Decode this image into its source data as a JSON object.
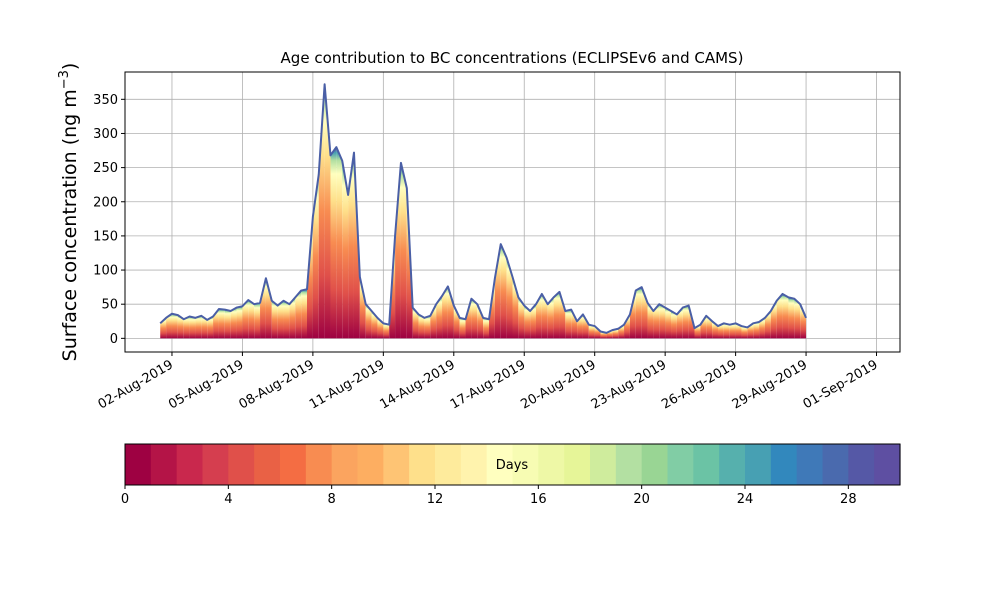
{
  "chart_data": {
    "type": "area",
    "title": "Age contribution to BC concentrations (ECLIPSEv6 and CAMS)",
    "ylabel": "Surface concentration (ng m",
    "ylabel_superscript": "−3",
    "ylabel_close": ")",
    "xlabel": "",
    "ylim": [
      -20,
      390
    ],
    "yticks": [
      0,
      50,
      100,
      150,
      200,
      250,
      300,
      350
    ],
    "xlim": [
      "2019-07-31T00:00",
      "2019-09-02T00:00"
    ],
    "xticks": [
      "02-Aug-2019",
      "05-Aug-2019",
      "08-Aug-2019",
      "11-Aug-2019",
      "14-Aug-2019",
      "17-Aug-2019",
      "20-Aug-2019",
      "23-Aug-2019",
      "26-Aug-2019",
      "29-Aug-2019",
      "01-Sep-2019"
    ],
    "xtick_dates": [
      "2019-08-02",
      "2019-08-05",
      "2019-08-08",
      "2019-08-11",
      "2019-08-14",
      "2019-08-17",
      "2019-08-20",
      "2019-08-23",
      "2019-08-26",
      "2019-08-29",
      "2019-09-01"
    ],
    "grid": true,
    "total_series": {
      "name": "",
      "color": "#4a5fa6",
      "points": [
        [
          "2019-08-01T12:00",
          22
        ],
        [
          "2019-08-01T18:00",
          30
        ],
        [
          "2019-08-02T00:00",
          36
        ],
        [
          "2019-08-02T06:00",
          34
        ],
        [
          "2019-08-02T12:00",
          28
        ],
        [
          "2019-08-02T18:00",
          32
        ],
        [
          "2019-08-03T00:00",
          30
        ],
        [
          "2019-08-03T06:00",
          33
        ],
        [
          "2019-08-03T12:00",
          27
        ],
        [
          "2019-08-03T18:00",
          32
        ],
        [
          "2019-08-04T00:00",
          43
        ],
        [
          "2019-08-04T06:00",
          42
        ],
        [
          "2019-08-04T12:00",
          40
        ],
        [
          "2019-08-04T18:00",
          45
        ],
        [
          "2019-08-05T00:00",
          47
        ],
        [
          "2019-08-05T06:00",
          56
        ],
        [
          "2019-08-05T12:00",
          50
        ],
        [
          "2019-08-05T18:00",
          52
        ],
        [
          "2019-08-06T00:00",
          88
        ],
        [
          "2019-08-06T06:00",
          55
        ],
        [
          "2019-08-06T12:00",
          48
        ],
        [
          "2019-08-06T18:00",
          55
        ],
        [
          "2019-08-07T00:00",
          50
        ],
        [
          "2019-08-07T06:00",
          60
        ],
        [
          "2019-08-07T12:00",
          70
        ],
        [
          "2019-08-07T18:00",
          72
        ],
        [
          "2019-08-08T00:00",
          178
        ],
        [
          "2019-08-08T06:00",
          240
        ],
        [
          "2019-08-08T12:00",
          372
        ],
        [
          "2019-08-08T18:00",
          268
        ],
        [
          "2019-08-09T00:00",
          280
        ],
        [
          "2019-08-09T06:00",
          260
        ],
        [
          "2019-08-09T12:00",
          210
        ],
        [
          "2019-08-09T18:00",
          272
        ],
        [
          "2019-08-10T00:00",
          90
        ],
        [
          "2019-08-10T06:00",
          50
        ],
        [
          "2019-08-10T12:00",
          40
        ],
        [
          "2019-08-10T18:00",
          30
        ],
        [
          "2019-08-11T00:00",
          22
        ],
        [
          "2019-08-11T06:00",
          20
        ],
        [
          "2019-08-11T12:00",
          150
        ],
        [
          "2019-08-11T18:00",
          257
        ],
        [
          "2019-08-12T00:00",
          220
        ],
        [
          "2019-08-12T06:00",
          45
        ],
        [
          "2019-08-12T12:00",
          35
        ],
        [
          "2019-08-12T18:00",
          30
        ],
        [
          "2019-08-13T00:00",
          33
        ],
        [
          "2019-08-13T06:00",
          50
        ],
        [
          "2019-08-13T12:00",
          62
        ],
        [
          "2019-08-13T18:00",
          76
        ],
        [
          "2019-08-14T00:00",
          48
        ],
        [
          "2019-08-14T06:00",
          30
        ],
        [
          "2019-08-14T12:00",
          28
        ],
        [
          "2019-08-14T18:00",
          58
        ],
        [
          "2019-08-15T00:00",
          50
        ],
        [
          "2019-08-15T06:00",
          30
        ],
        [
          "2019-08-15T12:00",
          28
        ],
        [
          "2019-08-15T18:00",
          88
        ],
        [
          "2019-08-16T00:00",
          138
        ],
        [
          "2019-08-16T06:00",
          118
        ],
        [
          "2019-08-16T12:00",
          90
        ],
        [
          "2019-08-16T18:00",
          60
        ],
        [
          "2019-08-17T00:00",
          48
        ],
        [
          "2019-08-17T06:00",
          40
        ],
        [
          "2019-08-17T12:00",
          50
        ],
        [
          "2019-08-17T18:00",
          65
        ],
        [
          "2019-08-18T00:00",
          50
        ],
        [
          "2019-08-18T06:00",
          60
        ],
        [
          "2019-08-18T12:00",
          68
        ],
        [
          "2019-08-18T18:00",
          40
        ],
        [
          "2019-08-19T00:00",
          42
        ],
        [
          "2019-08-19T06:00",
          25
        ],
        [
          "2019-08-19T12:00",
          35
        ],
        [
          "2019-08-19T18:00",
          20
        ],
        [
          "2019-08-20T00:00",
          18
        ],
        [
          "2019-08-20T06:00",
          10
        ],
        [
          "2019-08-20T12:00",
          8
        ],
        [
          "2019-08-20T18:00",
          12
        ],
        [
          "2019-08-21T00:00",
          14
        ],
        [
          "2019-08-21T06:00",
          20
        ],
        [
          "2019-08-21T12:00",
          35
        ],
        [
          "2019-08-21T18:00",
          70
        ],
        [
          "2019-08-22T00:00",
          75
        ],
        [
          "2019-08-22T06:00",
          52
        ],
        [
          "2019-08-22T12:00",
          40
        ],
        [
          "2019-08-22T18:00",
          50
        ],
        [
          "2019-08-23T00:00",
          45
        ],
        [
          "2019-08-23T06:00",
          40
        ],
        [
          "2019-08-23T12:00",
          35
        ],
        [
          "2019-08-23T18:00",
          45
        ],
        [
          "2019-08-24T00:00",
          48
        ],
        [
          "2019-08-24T06:00",
          15
        ],
        [
          "2019-08-24T12:00",
          20
        ],
        [
          "2019-08-24T18:00",
          33
        ],
        [
          "2019-08-25T00:00",
          25
        ],
        [
          "2019-08-25T06:00",
          18
        ],
        [
          "2019-08-25T12:00",
          22
        ],
        [
          "2019-08-25T18:00",
          20
        ],
        [
          "2019-08-26T00:00",
          22
        ],
        [
          "2019-08-26T06:00",
          18
        ],
        [
          "2019-08-26T12:00",
          16
        ],
        [
          "2019-08-26T18:00",
          22
        ],
        [
          "2019-08-27T00:00",
          24
        ],
        [
          "2019-08-27T06:00",
          30
        ],
        [
          "2019-08-27T12:00",
          40
        ],
        [
          "2019-08-27T18:00",
          55
        ],
        [
          "2019-08-28T00:00",
          65
        ],
        [
          "2019-08-28T06:00",
          60
        ],
        [
          "2019-08-28T12:00",
          58
        ],
        [
          "2019-08-28T18:00",
          50
        ],
        [
          "2019-08-29T00:00",
          30
        ]
      ]
    },
    "colorbar": {
      "label": "Days",
      "min": 0,
      "max": 30,
      "ticks": [
        0,
        4,
        8,
        12,
        16,
        20,
        24,
        28
      ],
      "colormap": "Spectral",
      "colors": [
        "#9e0142",
        "#b41447",
        "#c9284d",
        "#d53e4f",
        "#e0504a",
        "#e96145",
        "#f46d43",
        "#f88c51",
        "#fba45f",
        "#fdae61",
        "#fec474",
        "#fee08b",
        "#feeb9c",
        "#fff3ad",
        "#ffffbf",
        "#f7fcb3",
        "#eef8a6",
        "#e6f598",
        "#cfec9d",
        "#b3e0a2",
        "#99d594",
        "#81cda5",
        "#6bc3a5",
        "#56b0ad",
        "#47a0b3",
        "#3288bd",
        "#3f79b8",
        "#4a6aae",
        "#5558a6",
        "#5e4fa2"
      ]
    }
  }
}
